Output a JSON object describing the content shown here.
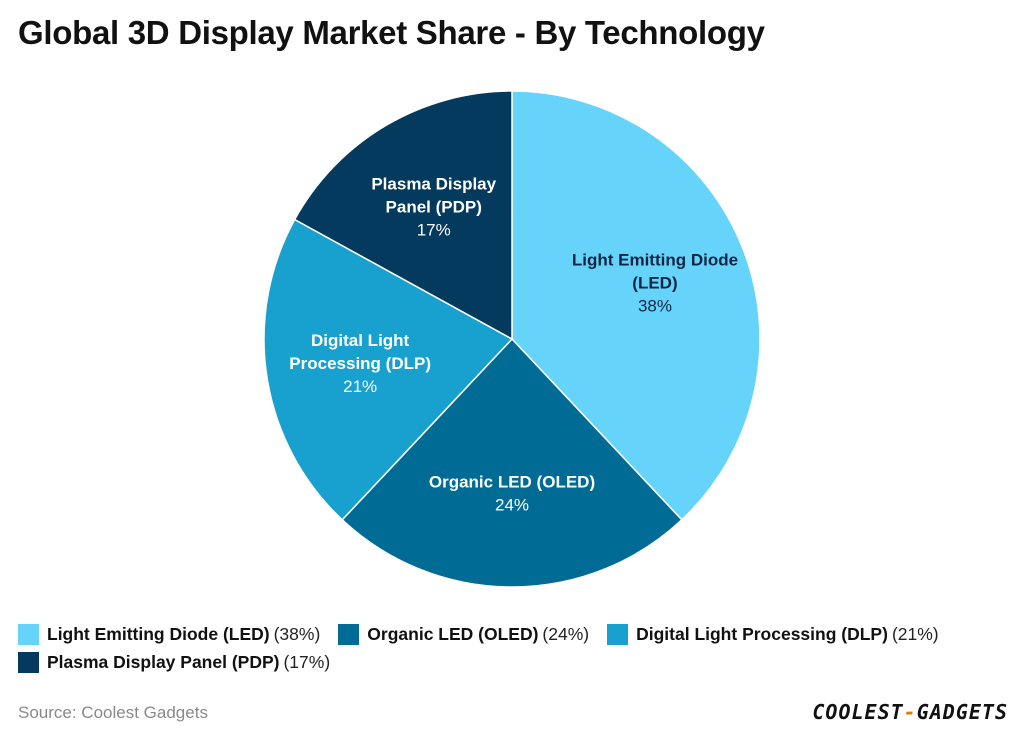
{
  "title": "Global 3D Display Market Share - By Technology",
  "chart_data": {
    "type": "pie",
    "title": "Global 3D Display Market Share - By Technology",
    "slices": [
      {
        "label": "Light Emitting Diode (LED)",
        "label_lines": [
          "Light Emitting Diode",
          "(LED)"
        ],
        "value": 38,
        "value_text": "38%",
        "color": "#66d4fa",
        "legend_pct": "(38%)"
      },
      {
        "label": "Organic LED (OLED)",
        "label_lines": [
          "Organic LED (OLED)"
        ],
        "value": 24,
        "value_text": "24%",
        "color": "#006b94",
        "legend_pct": "(24%)"
      },
      {
        "label": "Digital Light Processing (DLP)",
        "label_lines": [
          "Digital Light",
          "Processing (DLP)"
        ],
        "value": 21,
        "value_text": "21%",
        "color": "#18a0cf",
        "legend_pct": "(21%)"
      },
      {
        "label": "Plasma Display Panel (PDP)",
        "label_lines": [
          "Plasma Display",
          "Panel (PDP)"
        ],
        "value": 17,
        "value_text": "17%",
        "color": "#033a5e",
        "legend_pct": "(17%)"
      }
    ],
    "legend_position": "bottom"
  },
  "source": "Source: Coolest Gadgets",
  "brand": {
    "left": "COOLEST",
    "sep": "-",
    "right": "GADGETS"
  }
}
